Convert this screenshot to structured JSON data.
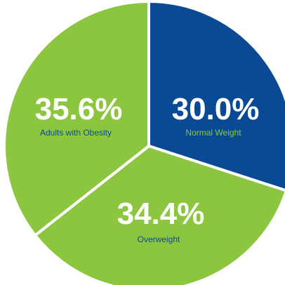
{
  "chart_data": {
    "type": "pie",
    "slices": [
      {
        "percent_label": "30.0%",
        "label": "Normal Weight",
        "value": 30.0,
        "color": "#0a4a94",
        "label_color": "#8cc63f"
      },
      {
        "percent_label": "34.4%",
        "label": "Overweight",
        "value": 34.4,
        "color": "#8cc63f",
        "label_color": "#0a4a94"
      },
      {
        "percent_label": "35.6%",
        "label": "Adults with Obesity",
        "value": 35.6,
        "color": "#8cc63f",
        "label_color": "#0a4a94"
      }
    ],
    "start_angle_deg": 0,
    "direction": "clockwise"
  }
}
